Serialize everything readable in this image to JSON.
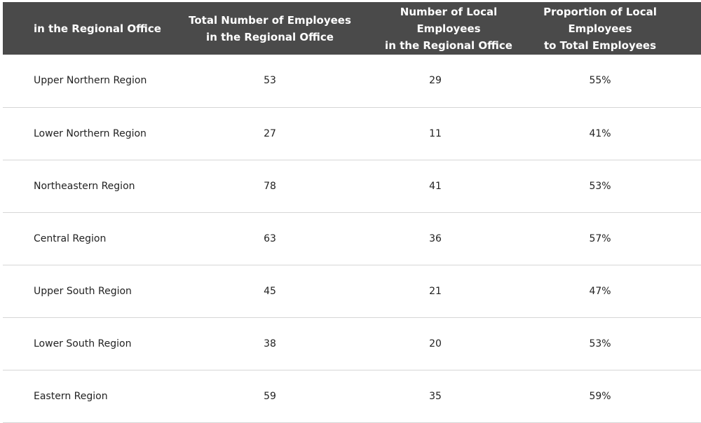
{
  "table": {
    "headers": [
      "in the Regional Office",
      "Total Number of Employees in the Regional Office",
      "Number of Local Employees in the Regional Office",
      "Proportion of Local Employees to Total Employees"
    ],
    "header_lines": {
      "h2": [
        "Total Number of Employees",
        "in the Regional Office"
      ],
      "h3": [
        "Number of Local Employees",
        "in the Regional Office"
      ],
      "h4": [
        "Proportion of Local Employees",
        "to Total Employees"
      ]
    },
    "rows": [
      [
        "Upper Northern Region",
        "53",
        "29",
        "55%"
      ],
      [
        "Lower Northern Region",
        "27",
        "11",
        "41%"
      ],
      [
        "Northeastern Region",
        "78",
        "41",
        "53%"
      ],
      [
        "Central Region",
        "63",
        "36",
        "57%"
      ],
      [
        "Upper South Region",
        "45",
        "21",
        "47%"
      ],
      [
        "Lower South Region",
        "38",
        "20",
        "53%"
      ],
      [
        "Eastern Region",
        "59",
        "35",
        "59%"
      ]
    ]
  },
  "colors": {
    "header_bg": "#4a4a4a",
    "header_text": "#ffffff",
    "row_divider": "#d6d6d6",
    "body_text": "#222222"
  }
}
